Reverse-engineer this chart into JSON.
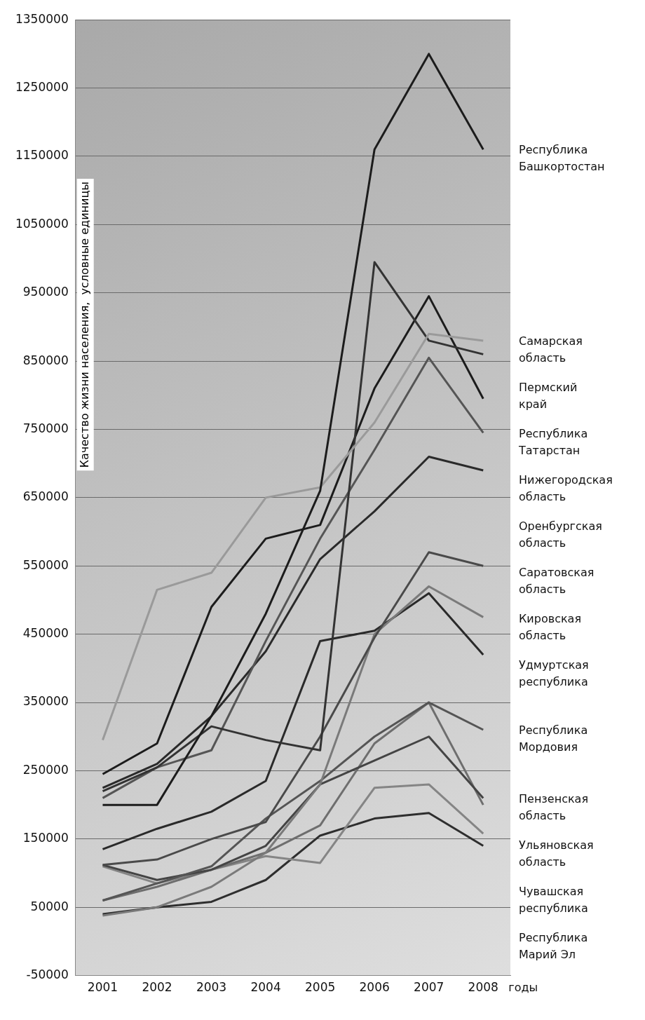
{
  "chart_data": {
    "type": "line",
    "ylabel": "Качество жизни населения,  условные единицы",
    "xlabel": "годы",
    "categories": [
      "2001",
      "2002",
      "2003",
      "2004",
      "2005",
      "2006",
      "2007",
      "2008"
    ],
    "ylim": [
      -50000,
      1350000
    ],
    "yticks": [
      -50000,
      50000,
      150000,
      250000,
      350000,
      450000,
      550000,
      650000,
      750000,
      850000,
      950000,
      1050000,
      1150000,
      1250000,
      1350000
    ],
    "grid": "y",
    "legend": false,
    "marker": "none",
    "line_style": "solid",
    "series": [
      {
        "name": "Республика Башкортостан",
        "color": "#1c1c1c",
        "values": [
          200000,
          200000,
          330000,
          480000,
          660000,
          1160000,
          1300000,
          1160000
        ]
      },
      {
        "name": "Самарская область",
        "color": "#9a9a9a",
        "values": [
          295000,
          515000,
          540000,
          650000,
          665000,
          760000,
          890000,
          880000
        ]
      },
      {
        "name": "Пермский край",
        "color": "#333333",
        "values": [
          220000,
          255000,
          315000,
          295000,
          280000,
          995000,
          880000,
          860000
        ]
      },
      {
        "name": "Республика Татарстан",
        "color": "#1c1c1c",
        "values": [
          245000,
          290000,
          490000,
          590000,
          610000,
          810000,
          945000,
          795000
        ]
      },
      {
        "name": "Нижегородская область",
        "color": "#555555",
        "values": [
          210000,
          255000,
          280000,
          440000,
          590000,
          720000,
          855000,
          745000
        ]
      },
      {
        "name": "Оренбургская область",
        "color": "#2a2a2a",
        "values": [
          225000,
          260000,
          330000,
          425000,
          560000,
          630000,
          710000,
          690000
        ]
      },
      {
        "name": "Саратовская область",
        "color": "#4a4a4a",
        "values": [
          112000,
          120000,
          150000,
          175000,
          300000,
          445000,
          570000,
          550000
        ]
      },
      {
        "name": "Кировская область",
        "color": "#7a7a7a",
        "values": [
          38000,
          50000,
          80000,
          130000,
          230000,
          450000,
          520000,
          475000
        ]
      },
      {
        "name": "Удмуртская республика",
        "color": "#2a2a2a",
        "values": [
          135000,
          165000,
          190000,
          235000,
          440000,
          455000,
          510000,
          420000
        ]
      },
      {
        "name": "Республика Мордовия",
        "color": "#555555",
        "values": [
          60000,
          85000,
          110000,
          180000,
          235000,
          300000,
          350000,
          310000
        ]
      },
      {
        "name": "Пензенская область",
        "color": "#444444",
        "values": [
          112000,
          90000,
          105000,
          140000,
          230000,
          265000,
          300000,
          210000
        ]
      },
      {
        "name": "Ульяновская область",
        "color": "#6e6e6e",
        "values": [
          60000,
          80000,
          105000,
          130000,
          170000,
          290000,
          350000,
          200000
        ]
      },
      {
        "name": "Чувашская республика",
        "color": "#858585",
        "values": [
          110000,
          85000,
          105000,
          125000,
          115000,
          225000,
          230000,
          158000
        ]
      },
      {
        "name": "Республика Марий Эл",
        "color": "#2e2e2e",
        "values": [
          40000,
          50000,
          58000,
          90000,
          155000,
          180000,
          188000,
          140000
        ]
      }
    ]
  }
}
